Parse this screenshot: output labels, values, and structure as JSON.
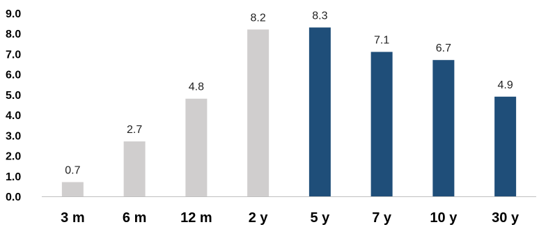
{
  "chart_data": {
    "type": "bar",
    "categories": [
      "3 m",
      "6 m",
      "12 m",
      "2 y",
      "5 y",
      "7 y",
      "10 y",
      "30 y"
    ],
    "values": [
      0.7,
      2.7,
      4.8,
      8.2,
      8.3,
      7.1,
      6.7,
      4.9
    ],
    "value_labels": [
      "0.7",
      "2.7",
      "4.8",
      "8.2",
      "8.3",
      "7.1",
      "6.7",
      "4.9"
    ],
    "ylim": [
      0,
      9
    ],
    "yticks": [
      0,
      1,
      2,
      3,
      4,
      5,
      6,
      7,
      8,
      9
    ],
    "ytick_labels": [
      "0.0",
      "1.0",
      "2.0",
      "3.0",
      "4.0",
      "5.0",
      "6.0",
      "7.0",
      "8.0",
      "9.0"
    ],
    "grid": false,
    "colors": {
      "light": "#d0cece",
      "dark": "#1f4e79",
      "axis": "#bfbfbf"
    },
    "bar_colors": [
      "light",
      "light",
      "light",
      "light",
      "dark",
      "dark",
      "dark",
      "dark"
    ]
  }
}
